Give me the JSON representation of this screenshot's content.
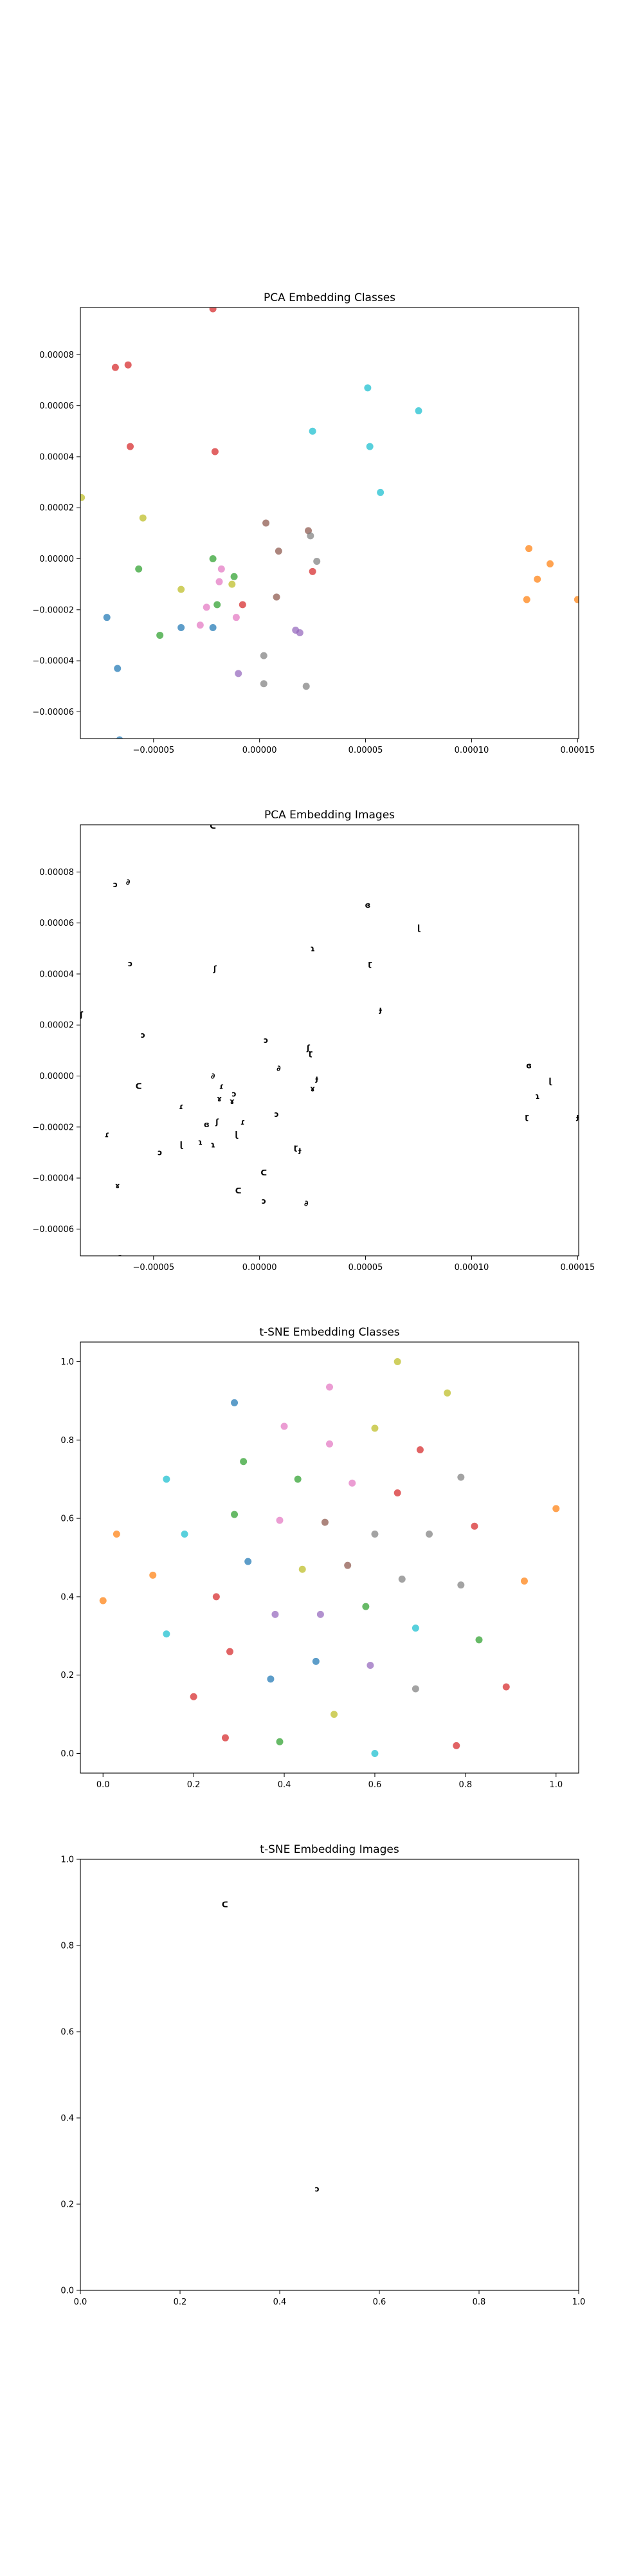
{
  "colors": [
    "#d62728",
    "#ff7f0e",
    "#2ca02c",
    "#1f77b4",
    "#9467bd",
    "#8c564b",
    "#e377c2",
    "#7f7f7f",
    "#bcbd22",
    "#17becf"
  ],
  "chart_data": [
    {
      "type": "scatter",
      "title": "PCA Embedding Classes",
      "xlim": [
        -8.45e-05,
        0.0001505
      ],
      "ylim": [
        -7.05e-05,
        9.85e-05
      ],
      "xticks": [
        {
          "value": -5e-05,
          "label": "−0.00005"
        },
        {
          "value": 0.0,
          "label": "0.00000"
        },
        {
          "value": 5e-05,
          "label": "0.00005"
        },
        {
          "value": 0.0001,
          "label": "0.00010"
        },
        {
          "value": 0.00015,
          "label": "0.00015"
        }
      ],
      "yticks": [
        {
          "value": -6e-05,
          "label": "−0.00006"
        },
        {
          "value": -4e-05,
          "label": "−0.00004"
        },
        {
          "value": -2e-05,
          "label": "−0.00002"
        },
        {
          "value": 0.0,
          "label": "0.00000"
        },
        {
          "value": 2e-05,
          "label": "0.00002"
        },
        {
          "value": 4e-05,
          "label": "0.00004"
        },
        {
          "value": 6e-05,
          "label": "0.00006"
        },
        {
          "value": 8e-05,
          "label": "0.00008"
        }
      ],
      "points": [
        {
          "x": -2.2e-05,
          "y": 9.8e-05,
          "c": 0
        },
        {
          "x": -6.8e-05,
          "y": 7.5e-05,
          "c": 0
        },
        {
          "x": -6.2e-05,
          "y": 7.6e-05,
          "c": 0
        },
        {
          "x": -6.1e-05,
          "y": 4.4e-05,
          "c": 0
        },
        {
          "x": -2.1e-05,
          "y": 4.2e-05,
          "c": 0
        },
        {
          "x": -8e-06,
          "y": -1.8e-05,
          "c": 0
        },
        {
          "x": 2.5e-05,
          "y": -5e-06,
          "c": 0
        },
        {
          "x": 0.000127,
          "y": 4e-06,
          "c": 1
        },
        {
          "x": 0.000137,
          "y": -2e-06,
          "c": 1
        },
        {
          "x": 0.000131,
          "y": -8e-06,
          "c": 1
        },
        {
          "x": 0.000126,
          "y": -1.6e-05,
          "c": 1
        },
        {
          "x": 0.00015,
          "y": -1.6e-05,
          "c": 1
        },
        {
          "x": -5.7e-05,
          "y": -4e-06,
          "c": 2
        },
        {
          "x": -4.7e-05,
          "y": -3e-05,
          "c": 2
        },
        {
          "x": -2.2e-05,
          "y": 0.0,
          "c": 2
        },
        {
          "x": -1.2e-05,
          "y": -7e-06,
          "c": 2
        },
        {
          "x": -2e-05,
          "y": -1.8e-05,
          "c": 2
        },
        {
          "x": -7.2e-05,
          "y": -2.3e-05,
          "c": 3
        },
        {
          "x": -6.7e-05,
          "y": -4.3e-05,
          "c": 3
        },
        {
          "x": -6.6e-05,
          "y": -7.1e-05,
          "c": 3
        },
        {
          "x": -3.7e-05,
          "y": -2.7e-05,
          "c": 3
        },
        {
          "x": -2.2e-05,
          "y": -2.7e-05,
          "c": 3
        },
        {
          "x": 1.7e-05,
          "y": -2.8e-05,
          "c": 4
        },
        {
          "x": 1.9e-05,
          "y": -2.9e-05,
          "c": 4
        },
        {
          "x": -1e-05,
          "y": -4.5e-05,
          "c": 4
        },
        {
          "x": 3e-06,
          "y": 1.4e-05,
          "c": 5
        },
        {
          "x": 9e-06,
          "y": 3e-06,
          "c": 5
        },
        {
          "x": 8e-06,
          "y": -1.5e-05,
          "c": 5
        },
        {
          "x": 2.3e-05,
          "y": 1.1e-05,
          "c": 5
        },
        {
          "x": -1.8e-05,
          "y": -4e-06,
          "c": 6
        },
        {
          "x": -1.9e-05,
          "y": -9e-06,
          "c": 6
        },
        {
          "x": -2.5e-05,
          "y": -1.9e-05,
          "c": 6
        },
        {
          "x": -1.1e-05,
          "y": -2.3e-05,
          "c": 6
        },
        {
          "x": -2.8e-05,
          "y": -2.6e-05,
          "c": 6
        },
        {
          "x": 2.4e-05,
          "y": 9e-06,
          "c": 7
        },
        {
          "x": 2.7e-05,
          "y": -1e-06,
          "c": 7
        },
        {
          "x": 2e-06,
          "y": -3.8e-05,
          "c": 7
        },
        {
          "x": 2e-06,
          "y": -4.9e-05,
          "c": 7
        },
        {
          "x": 2.2e-05,
          "y": -5e-05,
          "c": 7
        },
        {
          "x": -5.5e-05,
          "y": 1.6e-05,
          "c": 8
        },
        {
          "x": -8.4e-05,
          "y": 2.4e-05,
          "c": 8
        },
        {
          "x": -3.7e-05,
          "y": -1.2e-05,
          "c": 8
        },
        {
          "x": -1.3e-05,
          "y": -1e-05,
          "c": 8
        },
        {
          "x": 5.1e-05,
          "y": 6.7e-05,
          "c": 9
        },
        {
          "x": 7.5e-05,
          "y": 5.8e-05,
          "c": 9
        },
        {
          "x": 2.5e-05,
          "y": 5e-05,
          "c": 9
        },
        {
          "x": 5.2e-05,
          "y": 4.4e-05,
          "c": 9
        },
        {
          "x": 5.7e-05,
          "y": 2.6e-05,
          "c": 9
        }
      ]
    },
    {
      "type": "scatter",
      "title": "PCA Embedding Images",
      "xlim": [
        -8.45e-05,
        0.0001505
      ],
      "ylim": [
        -7.05e-05,
        9.85e-05
      ],
      "xticks": [
        {
          "value": -5e-05,
          "label": "−0.00005"
        },
        {
          "value": 0.0,
          "label": "0.00000"
        },
        {
          "value": 5e-05,
          "label": "0.00005"
        },
        {
          "value": 0.0001,
          "label": "0.00010"
        },
        {
          "value": 0.00015,
          "label": "0.00015"
        }
      ],
      "yticks": [
        {
          "value": -6e-05,
          "label": "−0.00006"
        },
        {
          "value": -4e-05,
          "label": "−0.00004"
        },
        {
          "value": -2e-05,
          "label": "−0.00002"
        },
        {
          "value": 0.0,
          "label": "0.00000"
        },
        {
          "value": 2e-05,
          "label": "0.00002"
        },
        {
          "value": 4e-05,
          "label": "0.00004"
        },
        {
          "value": 6e-05,
          "label": "0.00006"
        },
        {
          "value": 8e-05,
          "label": "0.00008"
        }
      ],
      "points": [
        {
          "x": -2.2e-05,
          "y": 9.8e-05
        },
        {
          "x": -6.8e-05,
          "y": 7.5e-05
        },
        {
          "x": -6.2e-05,
          "y": 7.6e-05
        },
        {
          "x": -6.1e-05,
          "y": 4.4e-05
        },
        {
          "x": -2.1e-05,
          "y": 4.2e-05
        },
        {
          "x": -8e-06,
          "y": -1.8e-05
        },
        {
          "x": 2.5e-05,
          "y": -5e-06
        },
        {
          "x": 0.000127,
          "y": 4e-06
        },
        {
          "x": 0.000137,
          "y": -2e-06
        },
        {
          "x": 0.000131,
          "y": -8e-06
        },
        {
          "x": 0.000126,
          "y": -1.6e-05
        },
        {
          "x": 0.00015,
          "y": -1.6e-05
        },
        {
          "x": -5.7e-05,
          "y": -4e-06
        },
        {
          "x": -4.7e-05,
          "y": -3e-05
        },
        {
          "x": -2.2e-05,
          "y": 0.0
        },
        {
          "x": -1.2e-05,
          "y": -7e-06
        },
        {
          "x": -2e-05,
          "y": -1.8e-05
        },
        {
          "x": -7.2e-05,
          "y": -2.3e-05
        },
        {
          "x": -6.7e-05,
          "y": -4.3e-05
        },
        {
          "x": -6.6e-05,
          "y": -7.1e-05
        },
        {
          "x": -3.7e-05,
          "y": -2.7e-05
        },
        {
          "x": -2.2e-05,
          "y": -2.7e-05
        },
        {
          "x": 1.7e-05,
          "y": -2.8e-05
        },
        {
          "x": 1.9e-05,
          "y": -2.9e-05
        },
        {
          "x": -1e-05,
          "y": -4.5e-05
        },
        {
          "x": 3e-06,
          "y": 1.4e-05
        },
        {
          "x": 9e-06,
          "y": 3e-06
        },
        {
          "x": 8e-06,
          "y": -1.5e-05
        },
        {
          "x": 2.3e-05,
          "y": 1.1e-05
        },
        {
          "x": -1.8e-05,
          "y": -4e-06
        },
        {
          "x": -1.9e-05,
          "y": -9e-06
        },
        {
          "x": -2.5e-05,
          "y": -1.9e-05
        },
        {
          "x": -1.1e-05,
          "y": -2.3e-05
        },
        {
          "x": -2.8e-05,
          "y": -2.6e-05
        },
        {
          "x": 2.4e-05,
          "y": 9e-06
        },
        {
          "x": 2.7e-05,
          "y": -1e-06
        },
        {
          "x": 2e-06,
          "y": -3.8e-05
        },
        {
          "x": 2e-06,
          "y": -4.9e-05
        },
        {
          "x": 2.2e-05,
          "y": -5e-05
        },
        {
          "x": -5.5e-05,
          "y": 1.6e-05
        },
        {
          "x": -8.4e-05,
          "y": 2.4e-05
        },
        {
          "x": -3.7e-05,
          "y": -1.2e-05
        },
        {
          "x": -1.3e-05,
          "y": -1e-05
        },
        {
          "x": 5.1e-05,
          "y": 6.7e-05
        },
        {
          "x": 7.5e-05,
          "y": 5.8e-05
        },
        {
          "x": 2.5e-05,
          "y": 5e-05
        },
        {
          "x": 5.2e-05,
          "y": 4.4e-05
        },
        {
          "x": 5.7e-05,
          "y": 2.6e-05
        }
      ]
    },
    {
      "type": "scatter",
      "title": "t-SNE Embedding Classes",
      "xlim": [
        -0.05,
        1.05
      ],
      "ylim": [
        -0.05,
        1.05
      ],
      "xticks": [
        {
          "value": 0.0,
          "label": "0.0"
        },
        {
          "value": 0.2,
          "label": "0.2"
        },
        {
          "value": 0.4,
          "label": "0.4"
        },
        {
          "value": 0.6,
          "label": "0.6"
        },
        {
          "value": 0.8,
          "label": "0.8"
        },
        {
          "value": 1.0,
          "label": "1.0"
        }
      ],
      "yticks": [
        {
          "value": 0.0,
          "label": "0.0"
        },
        {
          "value": 0.2,
          "label": "0.2"
        },
        {
          "value": 0.4,
          "label": "0.4"
        },
        {
          "value": 0.6,
          "label": "0.6"
        },
        {
          "value": 0.8,
          "label": "0.8"
        },
        {
          "value": 1.0,
          "label": "1.0"
        }
      ],
      "points": [
        {
          "x": 0.7,
          "y": 0.775,
          "c": 0
        },
        {
          "x": 0.65,
          "y": 0.665,
          "c": 0
        },
        {
          "x": 0.82,
          "y": 0.58,
          "c": 0
        },
        {
          "x": 0.25,
          "y": 0.4,
          "c": 0
        },
        {
          "x": 0.28,
          "y": 0.26,
          "c": 0
        },
        {
          "x": 0.2,
          "y": 0.145,
          "c": 0
        },
        {
          "x": 0.89,
          "y": 0.17,
          "c": 0
        },
        {
          "x": 0.27,
          "y": 0.04,
          "c": 0
        },
        {
          "x": 0.78,
          "y": 0.02,
          "c": 0
        },
        {
          "x": 1.0,
          "y": 0.625,
          "c": 1
        },
        {
          "x": 0.03,
          "y": 0.56,
          "c": 1
        },
        {
          "x": 0.11,
          "y": 0.455,
          "c": 1
        },
        {
          "x": 0.93,
          "y": 0.44,
          "c": 1
        },
        {
          "x": 0.0,
          "y": 0.39,
          "c": 1
        },
        {
          "x": 0.31,
          "y": 0.745,
          "c": 2
        },
        {
          "x": 0.43,
          "y": 0.7,
          "c": 2
        },
        {
          "x": 0.29,
          "y": 0.61,
          "c": 2
        },
        {
          "x": 0.58,
          "y": 0.375,
          "c": 2
        },
        {
          "x": 0.83,
          "y": 0.29,
          "c": 2
        },
        {
          "x": 0.39,
          "y": 0.03,
          "c": 2
        },
        {
          "x": 0.29,
          "y": 0.895,
          "c": 3
        },
        {
          "x": 0.32,
          "y": 0.49,
          "c": 3
        },
        {
          "x": 0.47,
          "y": 0.235,
          "c": 3
        },
        {
          "x": 0.37,
          "y": 0.19,
          "c": 3
        },
        {
          "x": 0.38,
          "y": 0.355,
          "c": 4
        },
        {
          "x": 0.48,
          "y": 0.355,
          "c": 4
        },
        {
          "x": 0.59,
          "y": 0.225,
          "c": 4
        },
        {
          "x": 0.49,
          "y": 0.59,
          "c": 5
        },
        {
          "x": 0.54,
          "y": 0.48,
          "c": 5
        },
        {
          "x": 0.4,
          "y": 0.835,
          "c": 6
        },
        {
          "x": 0.5,
          "y": 0.935,
          "c": 6
        },
        {
          "x": 0.5,
          "y": 0.79,
          "c": 6
        },
        {
          "x": 0.55,
          "y": 0.69,
          "c": 6
        },
        {
          "x": 0.39,
          "y": 0.595,
          "c": 6
        },
        {
          "x": 0.79,
          "y": 0.705,
          "c": 7
        },
        {
          "x": 0.6,
          "y": 0.56,
          "c": 7
        },
        {
          "x": 0.72,
          "y": 0.56,
          "c": 7
        },
        {
          "x": 0.66,
          "y": 0.445,
          "c": 7
        },
        {
          "x": 0.79,
          "y": 0.43,
          "c": 7
        },
        {
          "x": 0.69,
          "y": 0.165,
          "c": 7
        },
        {
          "x": 0.65,
          "y": 1.0,
          "c": 8
        },
        {
          "x": 0.76,
          "y": 0.92,
          "c": 8
        },
        {
          "x": 0.6,
          "y": 0.83,
          "c": 8
        },
        {
          "x": 0.44,
          "y": 0.47,
          "c": 8
        },
        {
          "x": 0.51,
          "y": 0.1,
          "c": 8
        },
        {
          "x": 0.14,
          "y": 0.7,
          "c": 9
        },
        {
          "x": 0.18,
          "y": 0.56,
          "c": 9
        },
        {
          "x": 0.14,
          "y": 0.305,
          "c": 9
        },
        {
          "x": 0.69,
          "y": 0.32,
          "c": 9
        },
        {
          "x": 0.6,
          "y": 0.0,
          "c": 9
        }
      ]
    },
    {
      "type": "scatter",
      "title": "t-SNE Embedding Images",
      "xlim": [
        0.0,
        1.0
      ],
      "ylim": [
        0.0,
        1.0
      ],
      "xticks": [
        {
          "value": 0.0,
          "label": "0.0"
        },
        {
          "value": 0.2,
          "label": "0.2"
        },
        {
          "value": 0.4,
          "label": "0.4"
        },
        {
          "value": 0.6,
          "label": "0.6"
        },
        {
          "value": 0.8,
          "label": "0.8"
        },
        {
          "value": 1.0,
          "label": "1.0"
        }
      ],
      "yticks": [
        {
          "value": 0.0,
          "label": "0.0"
        },
        {
          "value": 0.2,
          "label": "0.2"
        },
        {
          "value": 0.4,
          "label": "0.4"
        },
        {
          "value": 0.6,
          "label": "0.6"
        },
        {
          "value": 0.8,
          "label": "0.8"
        },
        {
          "value": 1.0,
          "label": "1.0"
        }
      ],
      "points": [
        {
          "x": 0.29,
          "y": 0.895
        },
        {
          "x": 0.475,
          "y": 0.235
        }
      ]
    }
  ]
}
